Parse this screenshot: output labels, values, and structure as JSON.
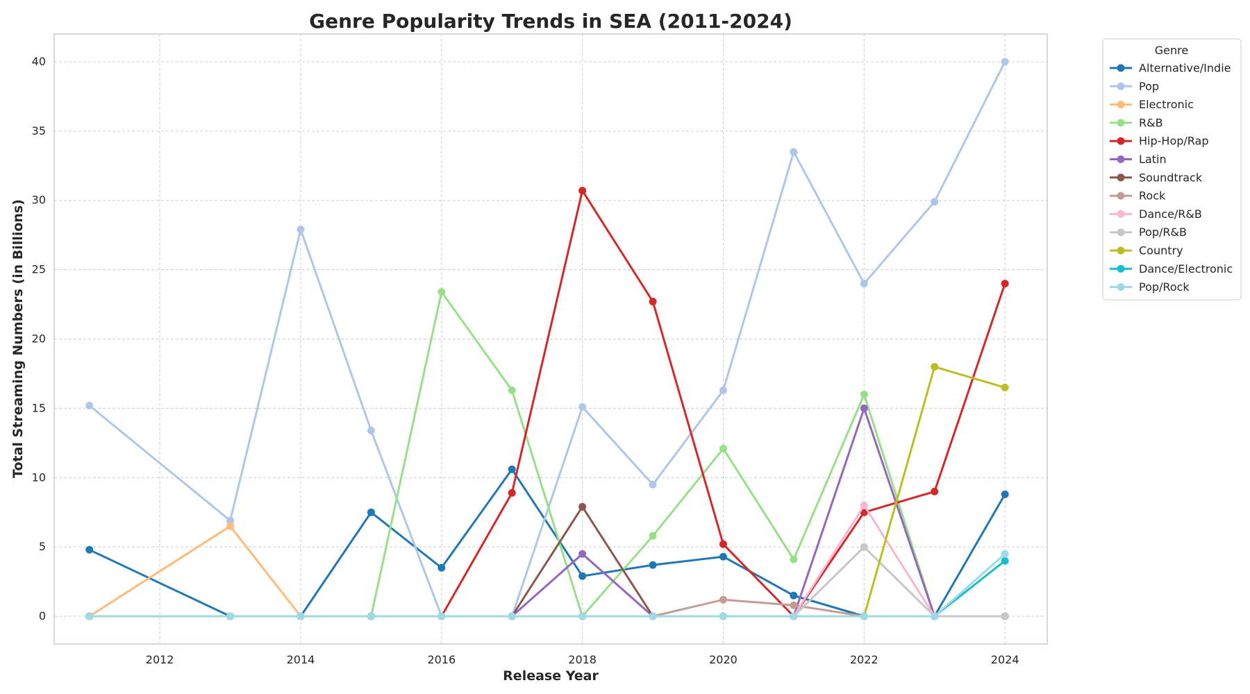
{
  "chart_data": {
    "type": "line",
    "title": "Genre Popularity Trends in SEA (2011-2024)",
    "xlabel": "Release Year",
    "ylabel": "Total Streaming Numbers (in Billions)",
    "xlim": [
      2010.5,
      2024.6
    ],
    "ylim": [
      -2,
      42
    ],
    "xticks": [
      2012,
      2014,
      2016,
      2018,
      2020,
      2022,
      2024
    ],
    "yticks": [
      0,
      5,
      10,
      15,
      20,
      25,
      30,
      35,
      40
    ],
    "grid": true,
    "legend_title": "Genre",
    "legend_position": "outside-top-right",
    "x": [
      2011,
      2013,
      2014,
      2015,
      2016,
      2017,
      2018,
      2019,
      2020,
      2021,
      2022,
      2023,
      2024
    ],
    "series": [
      {
        "name": "Alternative/Indie",
        "color": "#1f77b4",
        "values": [
          4.8,
          0,
          0,
          7.5,
          3.5,
          10.6,
          2.9,
          3.7,
          4.3,
          1.5,
          0,
          0,
          8.8
        ]
      },
      {
        "name": "Pop",
        "color": "#aec7e8",
        "values": [
          15.2,
          6.9,
          27.9,
          13.4,
          0,
          0,
          15.1,
          9.5,
          16.3,
          33.5,
          24.0,
          29.9,
          40.0
        ]
      },
      {
        "name": "Electronic",
        "color": "#ffbb78",
        "values": [
          0,
          6.5,
          0,
          0,
          0,
          0,
          0,
          0,
          0,
          0,
          0,
          0,
          0
        ]
      },
      {
        "name": "R&B",
        "color": "#98df8a",
        "values": [
          0,
          0,
          0,
          0,
          23.4,
          16.3,
          0,
          5.8,
          12.1,
          4.1,
          16.0,
          0,
          0
        ]
      },
      {
        "name": "Hip-Hop/Rap",
        "color": "#d62728",
        "values": [
          0,
          0,
          0,
          0,
          0,
          8.9,
          30.7,
          22.7,
          5.2,
          0,
          7.5,
          9.0,
          24.0
        ]
      },
      {
        "name": "Latin",
        "color": "#9467bd",
        "values": [
          0,
          0,
          0,
          0,
          0,
          0,
          4.5,
          0,
          0,
          0,
          15.0,
          0,
          0
        ]
      },
      {
        "name": "Soundtrack",
        "color": "#8c564b",
        "values": [
          0,
          0,
          0,
          0,
          0,
          0,
          7.9,
          0,
          0,
          0,
          0,
          0,
          0
        ]
      },
      {
        "name": "Rock",
        "color": "#c49c94",
        "values": [
          0,
          0,
          0,
          0,
          0,
          0,
          0,
          0,
          1.2,
          0.8,
          0,
          0,
          0
        ]
      },
      {
        "name": "Dance/R&B",
        "color": "#f7b6d2",
        "values": [
          0,
          0,
          0,
          0,
          0,
          0,
          0,
          0,
          0,
          0,
          8.0,
          0,
          0
        ]
      },
      {
        "name": "Pop/R&B",
        "color": "#c7c7c7",
        "values": [
          0,
          0,
          0,
          0,
          0,
          0,
          0,
          0,
          0,
          0,
          5.0,
          0,
          0
        ]
      },
      {
        "name": "Country",
        "color": "#bcbd22",
        "values": [
          0,
          0,
          0,
          0,
          0,
          0,
          0,
          0,
          0,
          0,
          0,
          18.0,
          16.5
        ]
      },
      {
        "name": "Dance/Electronic",
        "color": "#17becf",
        "values": [
          0,
          0,
          0,
          0,
          0,
          0,
          0,
          0,
          0,
          0,
          0,
          0,
          4.0
        ]
      },
      {
        "name": "Pop/Rock",
        "color": "#9edae5",
        "values": [
          0,
          0,
          0,
          0,
          0,
          0,
          0,
          0,
          0,
          0,
          0,
          0,
          4.5
        ]
      }
    ]
  }
}
